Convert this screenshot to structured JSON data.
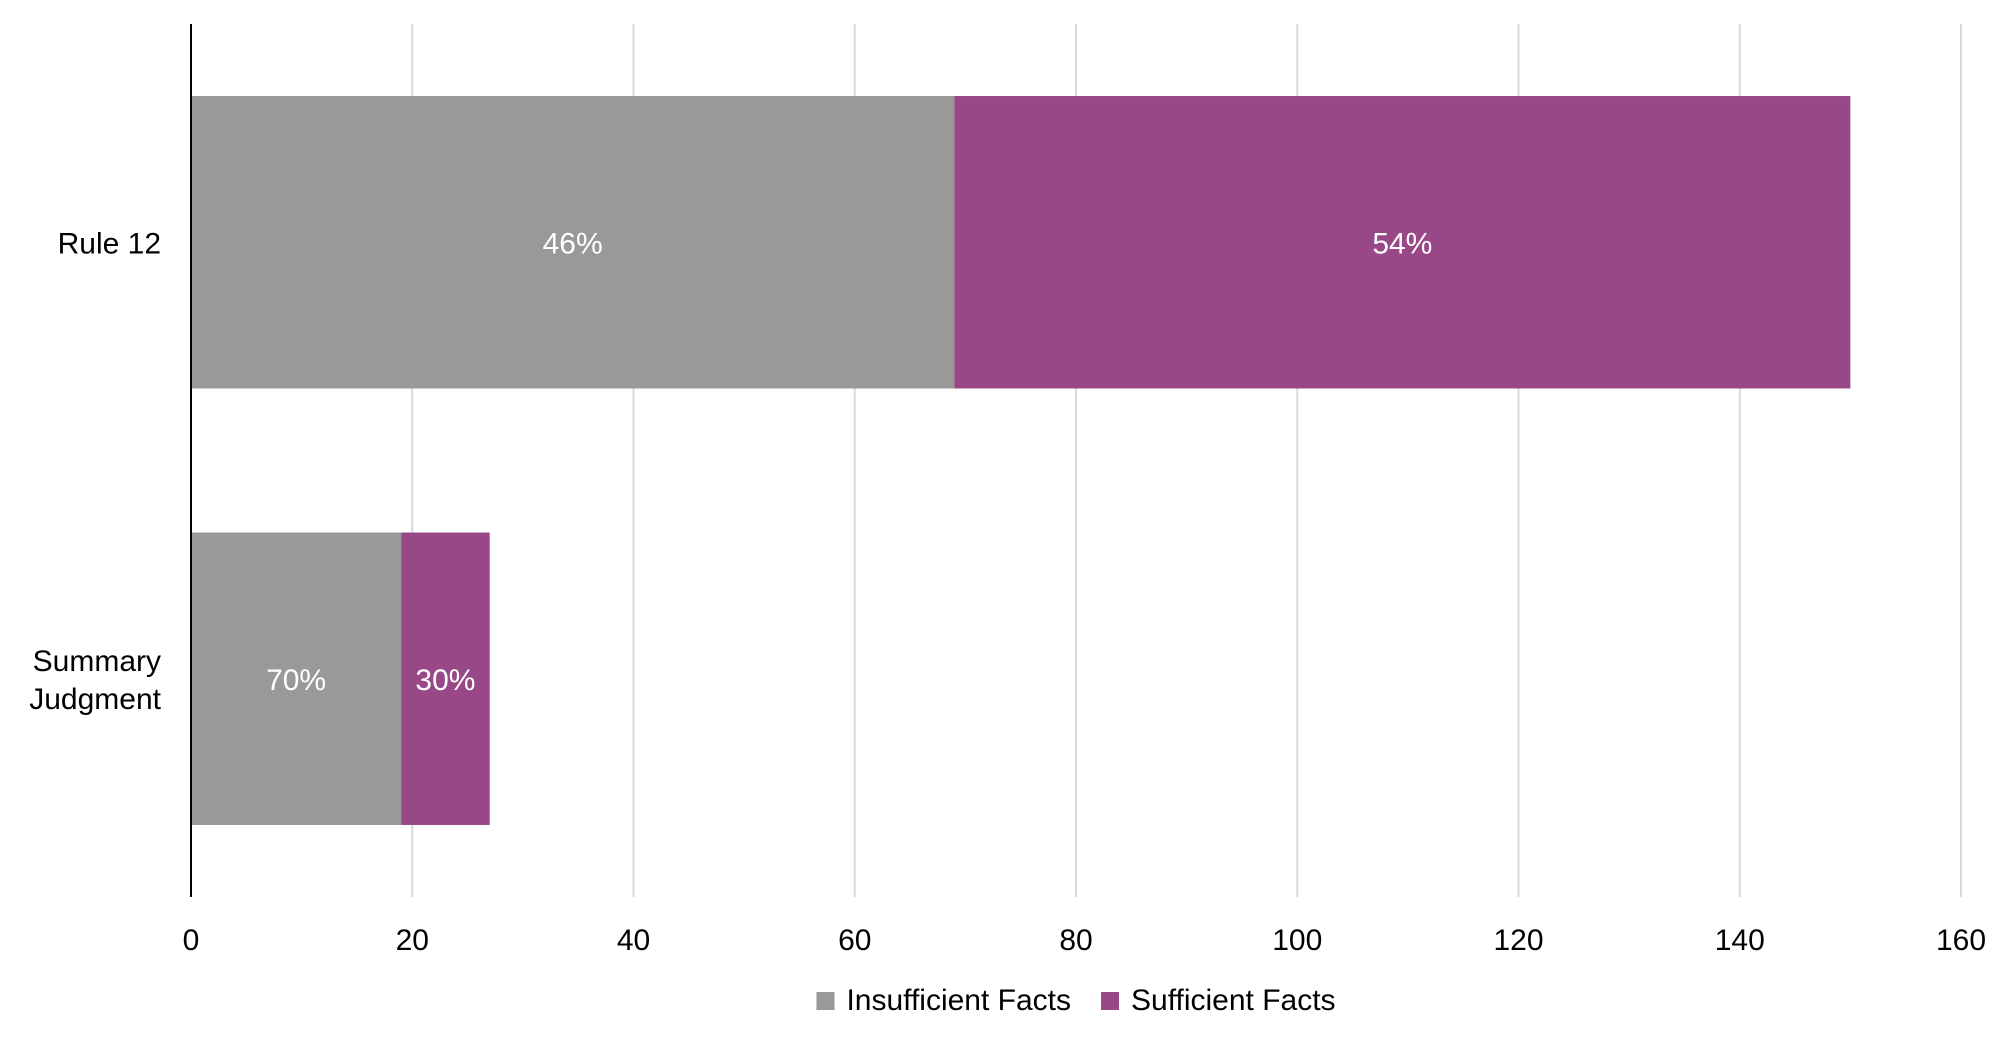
{
  "chart_data": {
    "type": "bar",
    "orientation": "horizontal",
    "stacked": true,
    "title": "",
    "xlabel": "",
    "ylabel": "",
    "categories": [
      "Rule 12",
      "Summary Judgment"
    ],
    "series": [
      {
        "name": "Insufficient Facts",
        "color": "#999999",
        "values": [
          69,
          19
        ],
        "labels": [
          "46%",
          "70%"
        ]
      },
      {
        "name": "Sufficient Facts",
        "color": "#984886",
        "values": [
          81,
          8
        ],
        "labels": [
          "54%",
          "30%"
        ]
      }
    ],
    "xlim": [
      0,
      160
    ],
    "xticks": [
      0,
      20,
      40,
      60,
      80,
      100,
      120,
      140,
      160
    ],
    "grid": true,
    "legend": "bottom-center"
  }
}
